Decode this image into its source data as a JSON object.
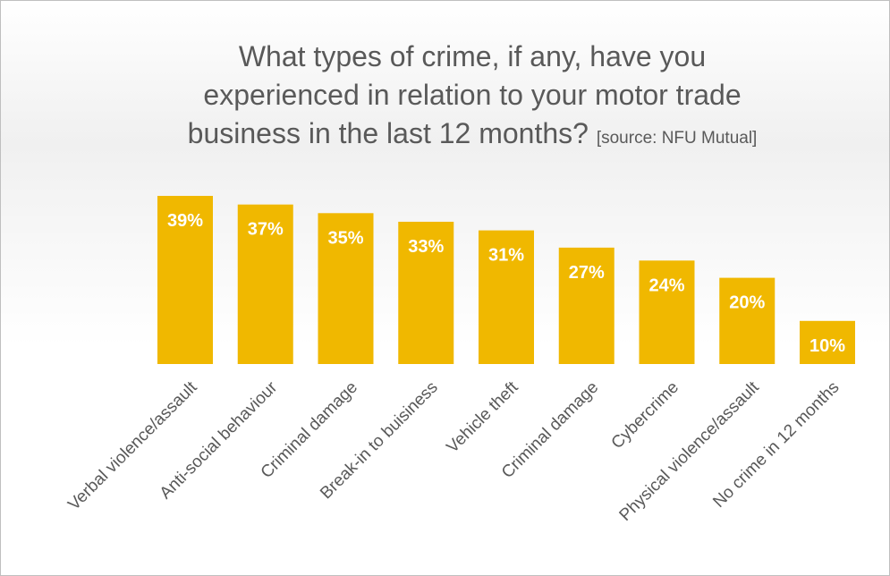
{
  "chart_data": {
    "type": "bar",
    "title": [
      "What types of crime, if any, have you",
      "experienced in relation to your motor trade",
      "business in the last  12 months?"
    ],
    "source": "[source: NFU Mutual]",
    "categories": [
      "Verbal violence/assault",
      "Anti-social behaviour",
      "Criminal damage",
      "Break-in to buisiness",
      "Vehicle theft",
      "Criminal damage",
      "Cybercrime",
      "Physical violence/assault",
      "No crime in 12 months"
    ],
    "values": [
      39,
      37,
      35,
      33,
      31,
      27,
      24,
      20,
      10
    ],
    "value_labels": [
      "39%",
      "37%",
      "35%",
      "33%",
      "31%",
      "27%",
      "24%",
      "20%",
      "10%"
    ],
    "color": "#f0b800"
  }
}
